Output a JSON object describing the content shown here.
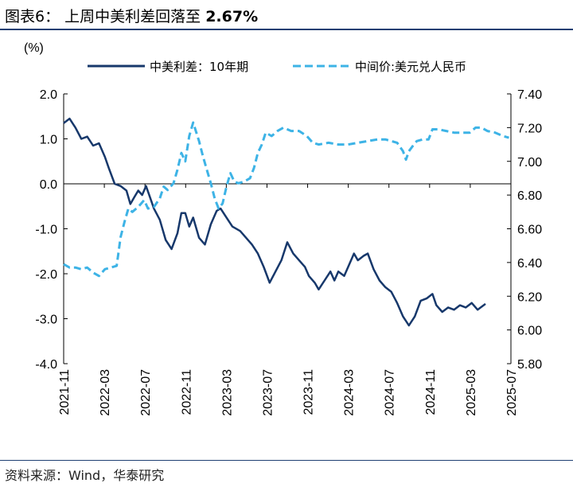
{
  "page": {
    "title_prefix": "图表6：",
    "title_main": "上周中美利差回落至",
    "title_value": "2.67%",
    "source": "资料来源：Wind，华泰研究"
  },
  "chart_data": {
    "type": "line",
    "unit_label": "(%)",
    "legend_placement": "top",
    "grid": false,
    "y_left": {
      "min": -4.0,
      "max": 2.0,
      "ticks": [
        "2.0",
        "1.0",
        "0.0",
        "-1.0",
        "-2.0",
        "-3.0",
        "-4.0"
      ]
    },
    "y_right": {
      "min": 5.8,
      "max": 7.4,
      "ticks": [
        "7.40",
        "7.20",
        "7.00",
        "6.80",
        "6.60",
        "6.40",
        "6.20",
        "6.00",
        "5.80"
      ]
    },
    "x_ticks": [
      "2021-11",
      "2022-03",
      "2022-07",
      "2022-11",
      "2023-03",
      "2023-07",
      "2023-11",
      "2024-03",
      "2024-07",
      "2024-11",
      "2025-03",
      "2025-07"
    ],
    "series": [
      {
        "name": "中美利差：10年期",
        "axis": "left",
        "color": "#17386b",
        "style": "solid",
        "points": [
          [
            0.0,
            1.35
          ],
          [
            0.3,
            1.45
          ],
          [
            0.6,
            1.25
          ],
          [
            0.9,
            1.0
          ],
          [
            1.2,
            1.05
          ],
          [
            1.5,
            0.85
          ],
          [
            1.8,
            0.9
          ],
          [
            2.1,
            0.6
          ],
          [
            2.3,
            0.35
          ],
          [
            2.6,
            0.0
          ],
          [
            2.9,
            -0.05
          ],
          [
            3.2,
            -0.15
          ],
          [
            3.4,
            -0.45
          ],
          [
            3.6,
            -0.3
          ],
          [
            3.8,
            -0.15
          ],
          [
            4.0,
            -0.25
          ],
          [
            4.2,
            -0.05
          ],
          [
            4.4,
            -0.3
          ],
          [
            4.6,
            -0.55
          ],
          [
            4.9,
            -0.8
          ],
          [
            5.2,
            -1.25
          ],
          [
            5.5,
            -1.45
          ],
          [
            5.8,
            -1.1
          ],
          [
            6.0,
            -0.65
          ],
          [
            6.2,
            -0.65
          ],
          [
            6.4,
            -0.95
          ],
          [
            6.6,
            -0.75
          ],
          [
            6.9,
            -1.2
          ],
          [
            7.2,
            -1.35
          ],
          [
            7.5,
            -0.9
          ],
          [
            7.8,
            -0.6
          ],
          [
            8.0,
            -0.55
          ],
          [
            8.3,
            -0.75
          ],
          [
            8.6,
            -0.95
          ],
          [
            9.0,
            -1.05
          ],
          [
            9.3,
            -1.2
          ],
          [
            9.6,
            -1.35
          ],
          [
            9.9,
            -1.55
          ],
          [
            10.2,
            -1.85
          ],
          [
            10.5,
            -2.2
          ],
          [
            10.8,
            -1.95
          ],
          [
            11.1,
            -1.7
          ],
          [
            11.4,
            -1.3
          ],
          [
            11.7,
            -1.55
          ],
          [
            12.0,
            -1.7
          ],
          [
            12.3,
            -1.85
          ],
          [
            12.5,
            -2.05
          ],
          [
            12.8,
            -2.2
          ],
          [
            13.0,
            -2.35
          ],
          [
            13.3,
            -2.15
          ],
          [
            13.6,
            -1.95
          ],
          [
            13.8,
            -2.15
          ],
          [
            14.0,
            -1.95
          ],
          [
            14.3,
            -2.05
          ],
          [
            14.6,
            -1.75
          ],
          [
            14.8,
            -1.55
          ],
          [
            15.0,
            -1.7
          ],
          [
            15.3,
            -1.6
          ],
          [
            15.5,
            -1.55
          ],
          [
            15.8,
            -1.9
          ],
          [
            16.1,
            -2.15
          ],
          [
            16.4,
            -2.3
          ],
          [
            16.7,
            -2.4
          ],
          [
            17.0,
            -2.65
          ],
          [
            17.3,
            -2.95
          ],
          [
            17.6,
            -3.15
          ],
          [
            17.9,
            -2.95
          ],
          [
            18.2,
            -2.6
          ],
          [
            18.5,
            -2.55
          ],
          [
            18.8,
            -2.45
          ],
          [
            19.0,
            -2.7
          ],
          [
            19.3,
            -2.85
          ],
          [
            19.6,
            -2.75
          ],
          [
            19.9,
            -2.8
          ],
          [
            20.2,
            -2.7
          ],
          [
            20.5,
            -2.75
          ],
          [
            20.8,
            -2.65
          ],
          [
            21.1,
            -2.8
          ],
          [
            21.5,
            -2.67
          ]
        ]
      },
      {
        "name": "中间价:美元兑人民币",
        "axis": "right",
        "color": "#3db3e6",
        "style": "dashed",
        "points": [
          [
            0.0,
            6.39
          ],
          [
            0.3,
            6.37
          ],
          [
            0.6,
            6.37
          ],
          [
            0.9,
            6.36
          ],
          [
            1.2,
            6.37
          ],
          [
            1.5,
            6.34
          ],
          [
            1.8,
            6.32
          ],
          [
            2.1,
            6.36
          ],
          [
            2.4,
            6.37
          ],
          [
            2.7,
            6.38
          ],
          [
            2.9,
            6.55
          ],
          [
            3.1,
            6.64
          ],
          [
            3.3,
            6.72
          ],
          [
            3.5,
            6.7
          ],
          [
            3.8,
            6.73
          ],
          [
            4.1,
            6.77
          ],
          [
            4.3,
            6.72
          ],
          [
            4.6,
            6.73
          ],
          [
            4.9,
            6.78
          ],
          [
            5.1,
            6.85
          ],
          [
            5.3,
            6.83
          ],
          [
            5.6,
            6.87
          ],
          [
            5.8,
            6.95
          ],
          [
            6.0,
            7.05
          ],
          [
            6.2,
            7.0
          ],
          [
            6.4,
            7.15
          ],
          [
            6.6,
            7.23
          ],
          [
            6.9,
            7.12
          ],
          [
            7.1,
            7.03
          ],
          [
            7.3,
            6.95
          ],
          [
            7.5,
            6.87
          ],
          [
            7.7,
            6.78
          ],
          [
            7.9,
            6.72
          ],
          [
            8.1,
            6.75
          ],
          [
            8.3,
            6.85
          ],
          [
            8.5,
            6.93
          ],
          [
            8.7,
            6.88
          ],
          [
            8.9,
            6.87
          ],
          [
            9.2,
            6.88
          ],
          [
            9.5,
            6.9
          ],
          [
            9.7,
            6.96
          ],
          [
            9.9,
            7.05
          ],
          [
            10.1,
            7.1
          ],
          [
            10.3,
            7.17
          ],
          [
            10.6,
            7.15
          ],
          [
            10.9,
            7.18
          ],
          [
            11.2,
            7.2
          ],
          [
            11.6,
            7.18
          ],
          [
            12.0,
            7.18
          ],
          [
            12.4,
            7.15
          ],
          [
            12.7,
            7.11
          ],
          [
            13.0,
            7.1
          ],
          [
            13.5,
            7.11
          ],
          [
            14.0,
            7.1
          ],
          [
            14.5,
            7.1
          ],
          [
            15.0,
            7.11
          ],
          [
            15.5,
            7.12
          ],
          [
            16.0,
            7.13
          ],
          [
            16.4,
            7.13
          ],
          [
            16.7,
            7.12
          ],
          [
            17.0,
            7.11
          ],
          [
            17.3,
            7.06
          ],
          [
            17.45,
            7.01
          ],
          [
            17.6,
            7.06
          ],
          [
            17.85,
            7.1
          ],
          [
            18.0,
            7.12
          ],
          [
            18.3,
            7.13
          ],
          [
            18.6,
            7.13
          ],
          [
            18.8,
            7.19
          ],
          [
            19.1,
            7.19
          ],
          [
            19.5,
            7.18
          ],
          [
            19.9,
            7.17
          ],
          [
            20.3,
            7.17
          ],
          [
            20.7,
            7.17
          ],
          [
            21.0,
            7.2
          ],
          [
            21.3,
            7.2
          ],
          [
            21.6,
            7.18
          ],
          [
            22.0,
            7.17
          ],
          [
            22.4,
            7.15
          ],
          [
            22.7,
            7.14
          ]
        ]
      }
    ]
  }
}
